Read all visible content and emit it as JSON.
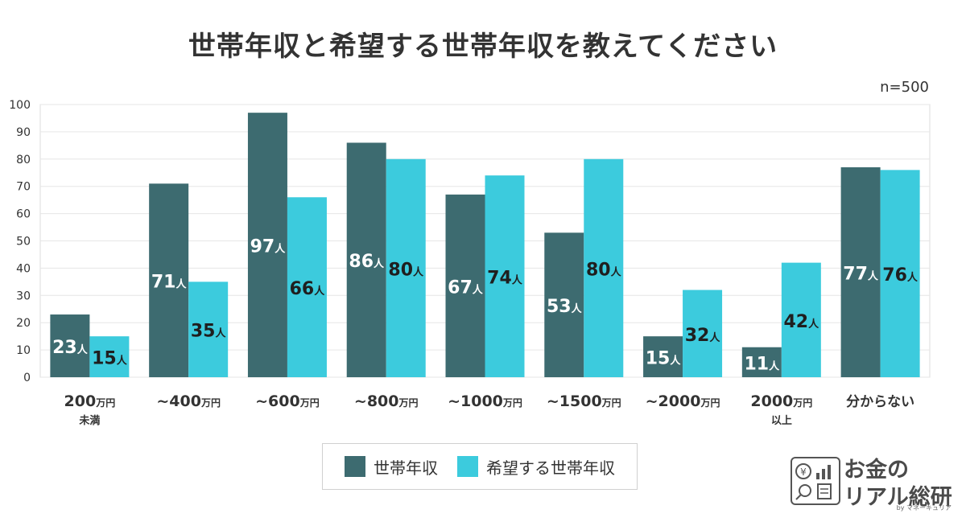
{
  "title": "世帯年収と希望する世帯年収を教えてください",
  "sample_size": "n=500",
  "colors": {
    "current": "#3d6b70",
    "desired": "#3ccbdd",
    "grid": "#e6e6e6"
  },
  "legend": {
    "current_label": "世帯年収",
    "desired_label": "希望する世帯年収"
  },
  "chart_data": {
    "type": "bar",
    "categories": [
      {
        "main": "200",
        "unit": "万円",
        "sub": "未満"
      },
      {
        "main": "~400",
        "unit": "万円",
        "sub": ""
      },
      {
        "main": "~600",
        "unit": "万円",
        "sub": ""
      },
      {
        "main": "~800",
        "unit": "万円",
        "sub": ""
      },
      {
        "main": "~1000",
        "unit": "万円",
        "sub": ""
      },
      {
        "main": "~1500",
        "unit": "万円",
        "sub": ""
      },
      {
        "main": "~2000",
        "unit": "万円",
        "sub": ""
      },
      {
        "main": "2000",
        "unit": "万円",
        "sub": "以上"
      },
      {
        "main": "分からない",
        "unit": "",
        "sub": ""
      }
    ],
    "series": [
      {
        "name": "世帯年収",
        "values": [
          23,
          71,
          97,
          86,
          67,
          53,
          15,
          11,
          77
        ]
      },
      {
        "name": "希望する世帯年収",
        "values": [
          15,
          35,
          66,
          80,
          74,
          80,
          32,
          42,
          76
        ]
      }
    ],
    "value_unit": "人",
    "ylim": [
      0,
      100
    ],
    "yticks": [
      0,
      10,
      20,
      30,
      40,
      50,
      60,
      70,
      80,
      90,
      100
    ],
    "grid": true,
    "legend_position": "bottom"
  },
  "logo": {
    "line1": "お金の",
    "line2": "リアル総研",
    "by": "by マネーキュリア"
  }
}
